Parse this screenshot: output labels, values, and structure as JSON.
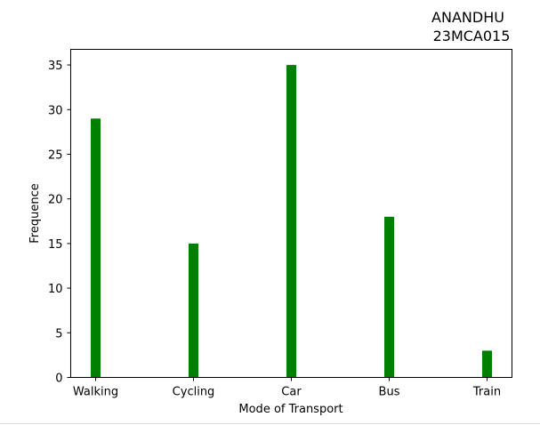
{
  "chart_data": {
    "type": "bar",
    "title_lines": [
      "ANANDHU",
      "23MCA015"
    ],
    "xlabel": "Mode of Transport",
    "ylabel": "Frequence",
    "categories": [
      "Walking",
      "Cycling",
      "Car",
      "Bus",
      "Train"
    ],
    "values": [
      29,
      15,
      35,
      18,
      3
    ],
    "ylim": [
      0,
      36.75
    ],
    "yticks": [
      0,
      5,
      10,
      15,
      20,
      25,
      30,
      35
    ],
    "bar_color": "#008000",
    "grid": false
  }
}
